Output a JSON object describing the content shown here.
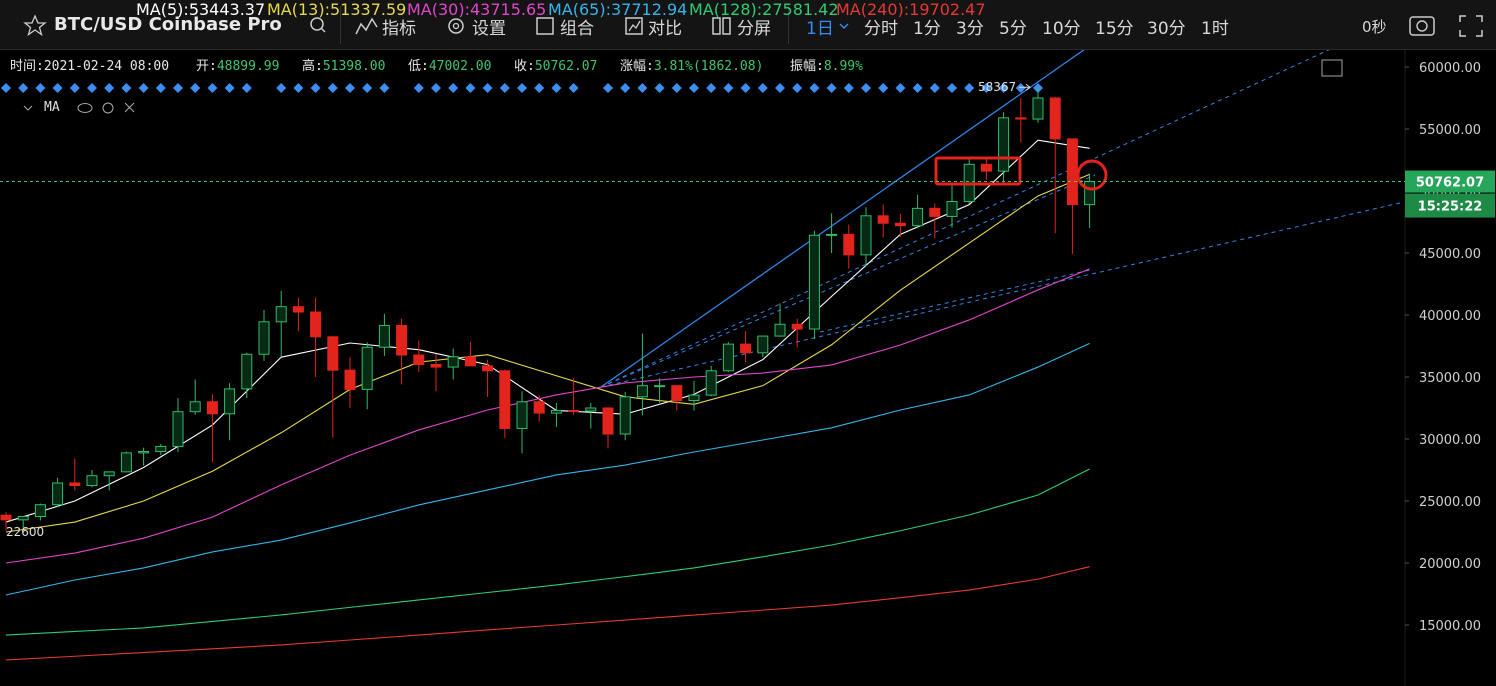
{
  "toolbar": {
    "title": "BTC/USD Coinbase Pro",
    "tools": [
      "指标",
      "设置",
      "组合",
      "对比",
      "分屏"
    ],
    "intervals": [
      "1日",
      "分时",
      "1分",
      "3分",
      "5分",
      "10分",
      "15分",
      "30分",
      "1时"
    ],
    "countdown": "0秒"
  },
  "info": [
    {
      "label": "时间:",
      "value": "2021-02-24 08:00"
    },
    {
      "label": "开:",
      "value": "48899.99"
    },
    {
      "label": "高:",
      "value": "51398.00"
    },
    {
      "label": "低:",
      "value": "47002.00"
    },
    {
      "label": "收:",
      "value": "50762.07"
    },
    {
      "label": "涨幅:",
      "value": "3.81%(1862.08)"
    },
    {
      "label": "振幅:",
      "value": "8.99%"
    }
  ],
  "ma_title": "MA",
  "timer": "15:25:22",
  "chart_data": {
    "type": "candlestick",
    "legend_sep": ":",
    "ylim": [
      10080,
      61370
    ],
    "yticks": [
      {
        "value": 15000,
        "label": "15000.00"
      },
      {
        "value": 20000,
        "label": "20000.00"
      },
      {
        "value": 25000,
        "label": "25000.00"
      },
      {
        "value": 30000,
        "label": "30000.00"
      },
      {
        "value": 35000,
        "label": "35000.00"
      },
      {
        "value": 40000,
        "label": "40000.00"
      },
      {
        "value": 45000,
        "label": "45000.00"
      },
      {
        "value": 50000,
        "label": "50000.00"
      },
      {
        "value": 55000,
        "label": "55000.00"
      },
      {
        "value": 60000,
        "label": "60000.00"
      }
    ],
    "grid": false,
    "series": [
      {
        "type": "candlestick",
        "up_color": "#2ebd6b",
        "down_color": "#e3241c",
        "open": [
          23850,
          23480,
          23750,
          24700,
          26450,
          26250,
          27040,
          27350,
          28880,
          28990,
          29400,
          32200,
          33000,
          32030,
          34040,
          36830,
          39450,
          40670,
          40240,
          38240,
          35550,
          34000,
          37400,
          39150,
          36770,
          36010,
          35800,
          36630,
          35900,
          35500,
          30850,
          33000,
          32090,
          32300,
          32260,
          32500,
          30400,
          33400,
          34300,
          34300,
          33100,
          33540,
          35500,
          37650,
          36950,
          38300,
          39250,
          38870,
          46430,
          46500,
          44850,
          48000,
          47400,
          47200,
          48600,
          47950,
          49150,
          52150,
          51600,
          55900,
          55800,
          57500,
          54200,
          48899.99
        ],
        "high": [
          24100,
          23800,
          24790,
          26870,
          28420,
          27500,
          27390,
          28990,
          29300,
          29600,
          33300,
          34800,
          33600,
          34500,
          36950,
          40400,
          41950,
          41400,
          41400,
          38300,
          36600,
          37800,
          40100,
          39700,
          37950,
          36850,
          37300,
          37850,
          36400,
          35600,
          33850,
          33500,
          32900,
          34900,
          32900,
          32550,
          33800,
          38500,
          34900,
          34300,
          34700,
          35900,
          37800,
          38700,
          38300,
          40950,
          39700,
          46800,
          48200,
          47300,
          48700,
          48900,
          48150,
          49700,
          49000,
          50600,
          52600,
          52550,
          56350,
          57500,
          58367,
          57600,
          54200,
          51398
        ],
        "low": [
          22600,
          22750,
          23430,
          24500,
          25860,
          26100,
          25850,
          27320,
          27850,
          28700,
          28950,
          31950,
          28130,
          29900,
          33300,
          36300,
          36600,
          38700,
          35000,
          30100,
          32500,
          32400,
          36700,
          34400,
          35400,
          33850,
          34800,
          35900,
          33400,
          30100,
          28850,
          31400,
          30950,
          31950,
          30850,
          29240,
          29900,
          31900,
          32900,
          32300,
          32300,
          33450,
          35400,
          36200,
          36600,
          38250,
          37400,
          38060,
          45000,
          43750,
          43950,
          46250,
          46300,
          47000,
          46200,
          47050,
          48950,
          50900,
          50700,
          53900,
          55500,
          46600,
          44900,
          47002
        ],
        "close": [
          23480,
          23750,
          24700,
          26450,
          26250,
          27040,
          27350,
          28880,
          28990,
          29400,
          32200,
          33000,
          32030,
          34040,
          36830,
          39450,
          40670,
          40240,
          38240,
          35550,
          34000,
          37400,
          39150,
          36770,
          36010,
          35800,
          36630,
          35900,
          35500,
          30850,
          33000,
          32090,
          32300,
          32260,
          32500,
          30400,
          33400,
          34300,
          34300,
          33100,
          33540,
          35500,
          37650,
          36950,
          38300,
          39250,
          38870,
          46430,
          46500,
          44850,
          48000,
          47400,
          47200,
          48600,
          47950,
          49150,
          52150,
          51600,
          55900,
          55800,
          57500,
          54200,
          48899.99,
          50762.07
        ]
      },
      {
        "type": "line",
        "name": "MA(5)",
        "color": "#ffffff",
        "x": [
          0,
          4,
          8,
          12,
          16,
          20,
          24,
          28,
          32,
          36,
          40,
          44,
          48,
          52,
          56,
          60,
          63
        ],
        "values": [
          23300,
          25000,
          27700,
          31124,
          36600,
          37740,
          37200,
          36000,
          32300,
          32000,
          33600,
          36400,
          41500,
          46500,
          48900,
          54100,
          53443.37
        ]
      },
      {
        "type": "line",
        "name": "MA(13)",
        "color": "#e6d94a",
        "x": [
          0,
          4,
          8,
          12,
          16,
          20,
          24,
          28,
          32,
          36,
          40,
          44,
          48,
          52,
          56,
          60,
          63
        ],
        "values": [
          22500,
          23300,
          25000,
          27400,
          30500,
          34000,
          36200,
          36800,
          35100,
          33400,
          32800,
          34300,
          37600,
          42000,
          45800,
          49600,
          51337.59
        ]
      },
      {
        "type": "line",
        "name": "MA(30)",
        "color": "#e046c8",
        "x": [
          0,
          4,
          8,
          12,
          16,
          20,
          24,
          28,
          32,
          36,
          40,
          44,
          48,
          52,
          56,
          60,
          63
        ],
        "values": [
          20000,
          20800,
          22000,
          23700,
          26300,
          28700,
          30730,
          32340,
          33550,
          34520,
          35000,
          35320,
          35970,
          37580,
          39600,
          42020,
          43715.65
        ]
      },
      {
        "type": "line",
        "name": "MA(65)",
        "color": "#36b4e8",
        "x": [
          0,
          4,
          8,
          12,
          16,
          20,
          24,
          28,
          32,
          36,
          40,
          44,
          48,
          52,
          56,
          60,
          63
        ],
        "values": [
          17420,
          18630,
          19600,
          20890,
          21850,
          23230,
          24680,
          25890,
          27100,
          27900,
          28950,
          29920,
          30900,
          32340,
          33550,
          35800,
          37712.94
        ]
      },
      {
        "type": "line",
        "name": "MA(128)",
        "color": "#2ecc71",
        "x": [
          0,
          4,
          8,
          12,
          16,
          20,
          24,
          28,
          32,
          36,
          40,
          44,
          48,
          52,
          56,
          60,
          63
        ],
        "values": [
          14190,
          14480,
          14760,
          15290,
          15810,
          16420,
          17020,
          17620,
          18230,
          18900,
          19600,
          20500,
          21450,
          22600,
          23870,
          25480,
          27581.42
        ]
      },
      {
        "type": "line",
        "name": "MA(240)",
        "color": "#e53935",
        "x": [
          0,
          4,
          8,
          12,
          16,
          20,
          24,
          28,
          32,
          36,
          40,
          44,
          48,
          52,
          56,
          60,
          63
        ],
        "values": [
          12180,
          12480,
          12780,
          13080,
          13390,
          13790,
          14190,
          14600,
          15000,
          15400,
          15800,
          16200,
          16610,
          17200,
          17820,
          18700,
          19702.47
        ]
      }
    ]
  }
}
